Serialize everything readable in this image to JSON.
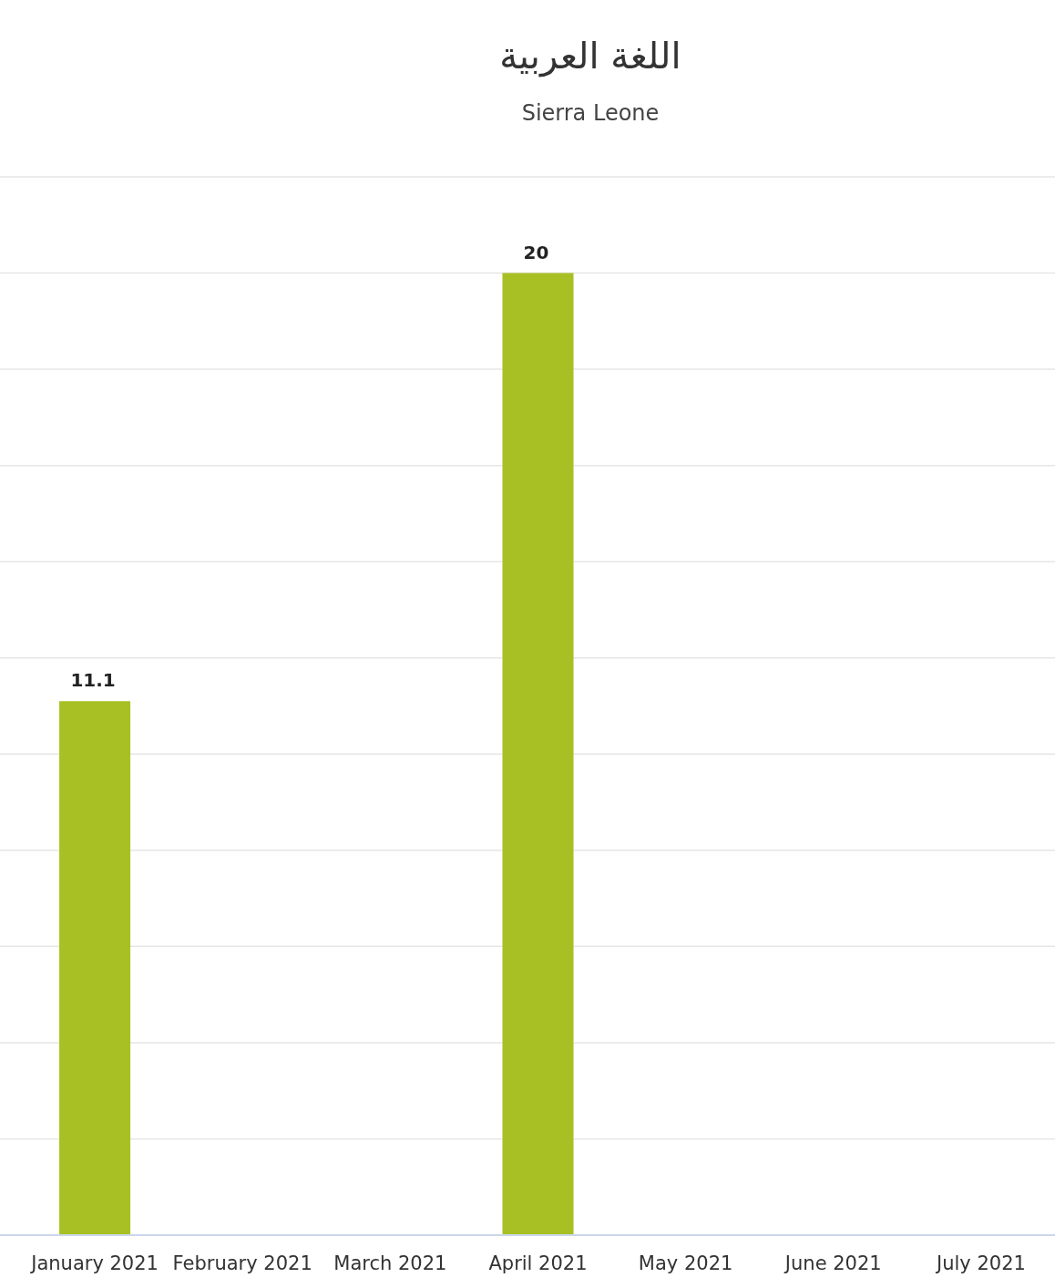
{
  "chart_data": {
    "type": "bar",
    "title": "اللغة العربية",
    "subtitle": "Sierra Leone",
    "categories": [
      "January 2021",
      "February 2021",
      "March 2021",
      "April 2021",
      "May 2021",
      "June 2021",
      "July 2021"
    ],
    "values": [
      11.1,
      null,
      null,
      20,
      null,
      null,
      null
    ],
    "color": "#a8c023",
    "ylim": [
      0,
      22
    ],
    "yticks": [
      {
        "value": 0,
        "label": null
      },
      {
        "value": 2,
        "label": null
      },
      {
        "value": 4,
        "label": null
      },
      {
        "value": 6,
        "label": null
      },
      {
        "value": 8,
        "label": null
      },
      {
        "value": 10,
        "label": null
      },
      {
        "value": 12,
        "label": null
      },
      {
        "value": 14,
        "label": null
      },
      {
        "value": 16,
        "label": null
      },
      {
        "value": 18,
        "label": null
      },
      {
        "value": 20,
        "label": null
      },
      {
        "value": 22,
        "label": null
      }
    ],
    "grid": "y",
    "tick_labels": "x",
    "data_labels": true
  }
}
